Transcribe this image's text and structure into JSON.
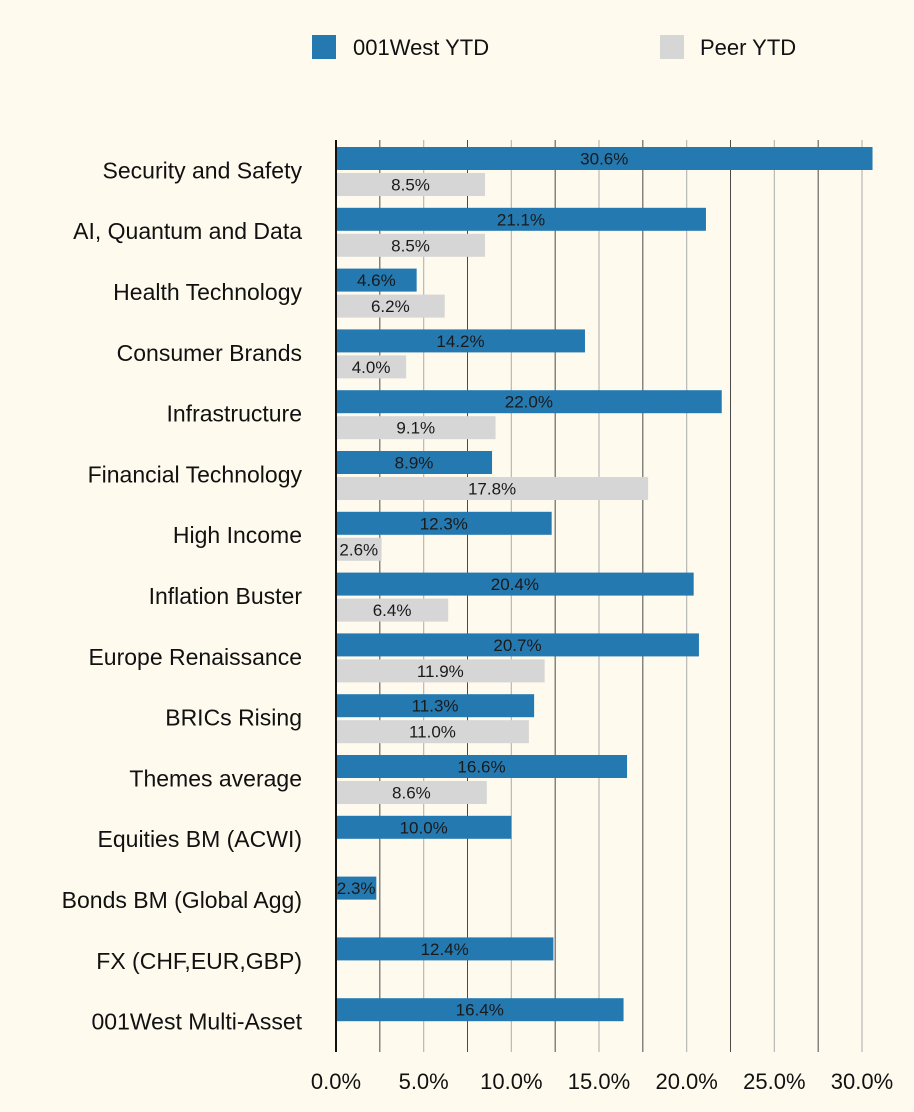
{
  "chart_data": {
    "type": "bar",
    "orientation": "horizontal",
    "categories": [
      "Security and Safety",
      "AI, Quantum and Data",
      "Health Technology",
      "Consumer Brands",
      "Infrastructure",
      "Financial Technology",
      "High Income",
      "Inflation Buster",
      "Europe Renaissance",
      "BRICs Rising",
      "Themes average",
      "Equities BM (ACWI)",
      "Bonds BM (Global Agg)",
      "FX (CHF,EUR,GBP)",
      "001West Multi-Asset"
    ],
    "series": [
      {
        "name": "001West YTD",
        "color": "#2479b0",
        "values": [
          30.6,
          21.1,
          4.6,
          14.2,
          22.0,
          8.9,
          12.3,
          20.4,
          20.7,
          11.3,
          16.6,
          10.0,
          2.3,
          12.4,
          16.4
        ],
        "labels": [
          "30.6%",
          "21.1%",
          "4.6%",
          "14.2%",
          "22.0%",
          "8.9%",
          "12.3%",
          "20.4%",
          "20.7%",
          "11.3%",
          "16.6%",
          "10.0%",
          "2.3%",
          "12.4%",
          "16.4%"
        ]
      },
      {
        "name": "Peer YTD",
        "color": "#d6d6d6",
        "values": [
          8.5,
          8.5,
          6.2,
          4.0,
          9.1,
          17.8,
          2.6,
          6.4,
          11.9,
          11.0,
          8.6,
          null,
          null,
          null,
          null
        ],
        "labels": [
          "8.5%",
          "8.5%",
          "6.2%",
          "4.0%",
          "9.1%",
          "17.8%",
          "2.6%",
          "6.4%",
          "11.9%",
          "11.0%",
          "8.6%",
          null,
          null,
          null,
          null
        ]
      }
    ],
    "x_ticks": [
      "0.0%",
      "5.0%",
      "10.0%",
      "15.0%",
      "20.0%",
      "25.0%",
      "30.0%"
    ],
    "xlim": [
      0,
      30
    ],
    "grid": true,
    "legend_position": "top"
  }
}
